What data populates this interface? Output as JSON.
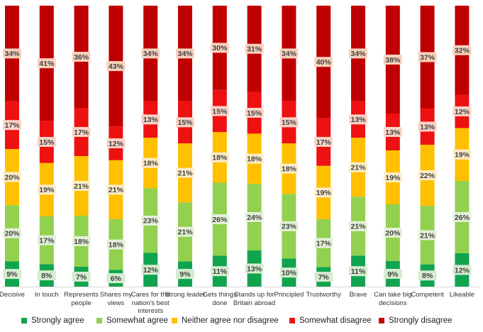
{
  "chart_data": {
    "type": "bar",
    "stacked": true,
    "percent": true,
    "categories": [
      "Decisive",
      "In touch",
      "Represents people",
      "Shares my views",
      "Cares for the nation's best interests",
      "Strong leader",
      "Gets things done",
      "Stands up for Britain abroad",
      "Principled",
      "Trustworthy",
      "Brave",
      "Can take big decisions",
      "Competent",
      "Likeable"
    ],
    "series": [
      {
        "name": "Strongly agree",
        "color": "#11a44e",
        "values": [
          9,
          8,
          7,
          6,
          12,
          9,
          11,
          13,
          10,
          7,
          11,
          9,
          8,
          12
        ]
      },
      {
        "name": "Somewhat agree",
        "color": "#92d050",
        "values": [
          20,
          17,
          18,
          18,
          23,
          21,
          26,
          24,
          23,
          17,
          21,
          20,
          21,
          26
        ]
      },
      {
        "name": "Neither agree nor disagree",
        "color": "#ffc000",
        "values": [
          20,
          19,
          21,
          21,
          18,
          21,
          18,
          18,
          18,
          19,
          21,
          19,
          22,
          19
        ]
      },
      {
        "name": "Somewhat disagree",
        "color": "#ee1111",
        "values": [
          17,
          15,
          17,
          12,
          13,
          15,
          15,
          15,
          15,
          17,
          13,
          13,
          13,
          12
        ]
      },
      {
        "name": "Strongly disagree",
        "color": "#c00000",
        "values": [
          34,
          41,
          36,
          43,
          34,
          34,
          30,
          31,
          34,
          40,
          34,
          38,
          37,
          32
        ]
      }
    ],
    "data_label_suffix": "%",
    "legend_position": "bottom",
    "ylim": [
      0,
      100
    ]
  }
}
